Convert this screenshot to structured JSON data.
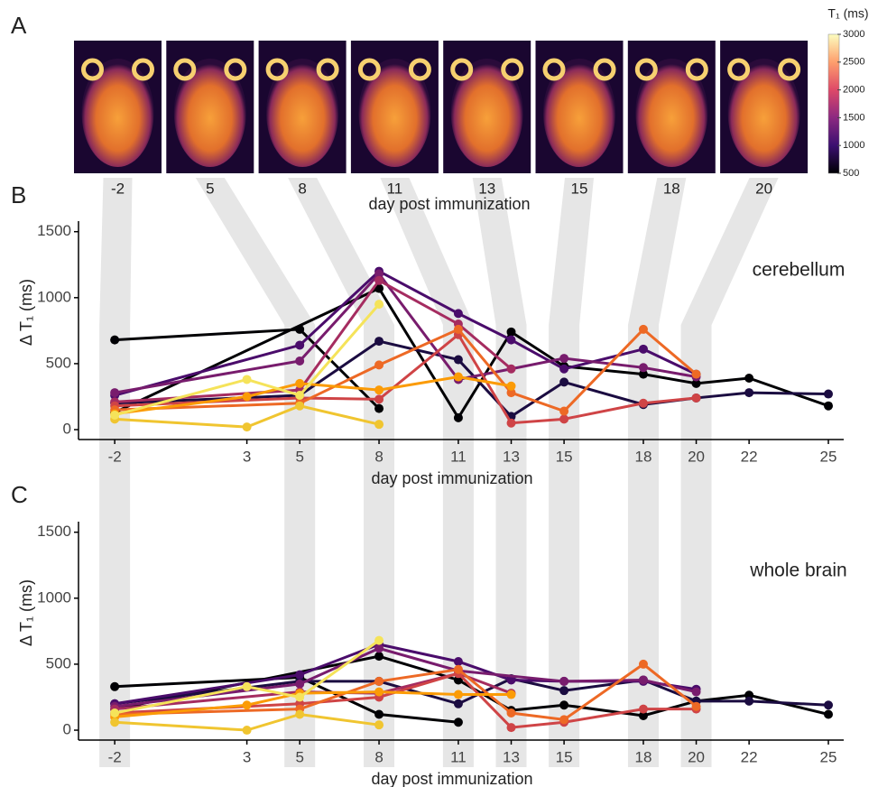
{
  "chart_data": [
    {
      "type": "image-strip",
      "panel_label": "A",
      "x": [
        -2,
        5,
        8,
        11,
        13,
        15,
        18,
        20
      ],
      "xlabel": "day post immunization",
      "colorbar_title": "T₁ (ms)",
      "zlim": [
        500,
        3000
      ],
      "zticks": [
        500,
        1000,
        1500,
        2000,
        2500,
        3000
      ],
      "colormap": "inferno"
    },
    {
      "type": "line",
      "panel_label": "B",
      "annotation": "cerebellum",
      "xlabel": "day post immunization",
      "ylabel": "Δ T₁ (ms)",
      "xlim": [
        -3.37,
        25.58
      ],
      "xticks": [
        -2,
        3,
        5,
        8,
        11,
        13,
        15,
        18,
        20,
        22,
        25
      ],
      "ylim": [
        -75,
        1580
      ],
      "yticks": [
        0,
        500,
        1000,
        1500
      ],
      "series": [
        {
          "color": "#000004",
          "x": [
            -2,
            5,
            8
          ],
          "values": [
            680,
            760,
            160
          ]
        },
        {
          "color": "#000004",
          "x": [
            -2,
            8,
            11,
            13,
            15,
            18,
            20,
            22,
            25
          ],
          "values": [
            130,
            1070,
            90,
            740,
            480,
            420,
            350,
            390,
            180
          ]
        },
        {
          "color": "#1b0c41",
          "x": [
            -2,
            5,
            8,
            11,
            13,
            15,
            18,
            20,
            22,
            25
          ],
          "values": [
            200,
            260,
            670,
            530,
            100,
            360,
            190,
            240,
            280,
            270
          ]
        },
        {
          "color": "#4a0c6b",
          "x": [
            -2,
            5,
            8,
            11,
            13,
            15,
            18,
            20
          ],
          "values": [
            260,
            640,
            1200,
            880,
            680,
            460,
            610,
            420
          ]
        },
        {
          "color": "#781c6d",
          "x": [
            -2,
            5,
            8,
            11,
            15,
            18,
            20
          ],
          "values": [
            280,
            520,
            1180,
            380,
            540,
            470,
            400
          ]
        },
        {
          "color": "#a52c60",
          "x": [
            -2,
            5,
            8,
            11,
            13
          ],
          "values": [
            210,
            300,
            1130,
            800,
            460
          ]
        },
        {
          "color": "#cf4446",
          "x": [
            -2,
            5,
            8,
            11,
            13,
            15,
            18,
            20
          ],
          "values": [
            180,
            240,
            230,
            720,
            50,
            80,
            200,
            240
          ]
        },
        {
          "color": "#ed6925",
          "x": [
            -2,
            5,
            8,
            11,
            13,
            15,
            18,
            20
          ],
          "values": [
            150,
            200,
            490,
            760,
            280,
            140,
            760,
            420
          ]
        },
        {
          "color": "#fb9b06",
          "x": [
            -2,
            3,
            5,
            8,
            11,
            13
          ],
          "values": [
            120,
            250,
            350,
            300,
            400,
            330
          ]
        },
        {
          "color": "#f0c530",
          "x": [
            -2,
            3,
            5,
            8
          ],
          "values": [
            80,
            20,
            180,
            40
          ]
        },
        {
          "color": "#f5e35a",
          "x": [
            -2,
            3,
            5,
            8
          ],
          "values": [
            110,
            380,
            260,
            950
          ]
        }
      ]
    },
    {
      "type": "line",
      "panel_label": "C",
      "annotation": "whole brain",
      "xlabel": "day post immunization",
      "ylabel": "Δ T₁ (ms)",
      "xlim": [
        -3.37,
        25.58
      ],
      "xticks": [
        -2,
        3,
        5,
        8,
        11,
        13,
        15,
        18,
        20,
        22,
        25
      ],
      "ylim": [
        -75,
        1580
      ],
      "yticks": [
        0,
        500,
        1000,
        1500
      ],
      "series": [
        {
          "color": "#000004",
          "x": [
            -2,
            5,
            8,
            11
          ],
          "values": [
            330,
            400,
            120,
            60
          ]
        },
        {
          "color": "#000004",
          "x": [
            -2,
            8,
            11,
            13,
            15,
            18,
            20,
            22,
            25
          ],
          "values": [
            160,
            560,
            380,
            150,
            190,
            110,
            220,
            265,
            120
          ]
        },
        {
          "color": "#1b0c41",
          "x": [
            -2,
            5,
            8,
            11,
            13,
            15,
            18,
            20,
            22,
            25
          ],
          "values": [
            200,
            370,
            370,
            200,
            390,
            300,
            380,
            220,
            220,
            190
          ]
        },
        {
          "color": "#4a0c6b",
          "x": [
            -2,
            5,
            8,
            11,
            13,
            15,
            18,
            20
          ],
          "values": [
            200,
            420,
            650,
            520,
            380,
            370,
            370,
            310
          ]
        },
        {
          "color": "#781c6d",
          "x": [
            -2,
            5,
            8,
            11,
            15,
            18,
            20
          ],
          "values": [
            180,
            350,
            620,
            450,
            370,
            380,
            290
          ]
        },
        {
          "color": "#a52c60",
          "x": [
            -2,
            5,
            8,
            11,
            13
          ],
          "values": [
            160,
            290,
            280,
            430,
            280
          ]
        },
        {
          "color": "#cf4446",
          "x": [
            -2,
            5,
            8,
            11,
            13,
            15,
            18,
            20
          ],
          "values": [
            130,
            200,
            250,
            430,
            20,
            60,
            160,
            160
          ]
        },
        {
          "color": "#ed6925",
          "x": [
            -2,
            5,
            8,
            11,
            13,
            15,
            18,
            20
          ],
          "values": [
            120,
            160,
            370,
            460,
            130,
            80,
            500,
            180
          ]
        },
        {
          "color": "#fb9b06",
          "x": [
            -2,
            3,
            5,
            8,
            11,
            13
          ],
          "values": [
            100,
            190,
            280,
            290,
            270,
            270
          ]
        },
        {
          "color": "#f0c530",
          "x": [
            -2,
            3,
            5,
            8
          ],
          "values": [
            60,
            0,
            120,
            40
          ]
        },
        {
          "color": "#f5e35a",
          "x": [
            -2,
            3,
            5,
            8
          ],
          "values": [
            130,
            330,
            250,
            680
          ]
        }
      ]
    }
  ]
}
